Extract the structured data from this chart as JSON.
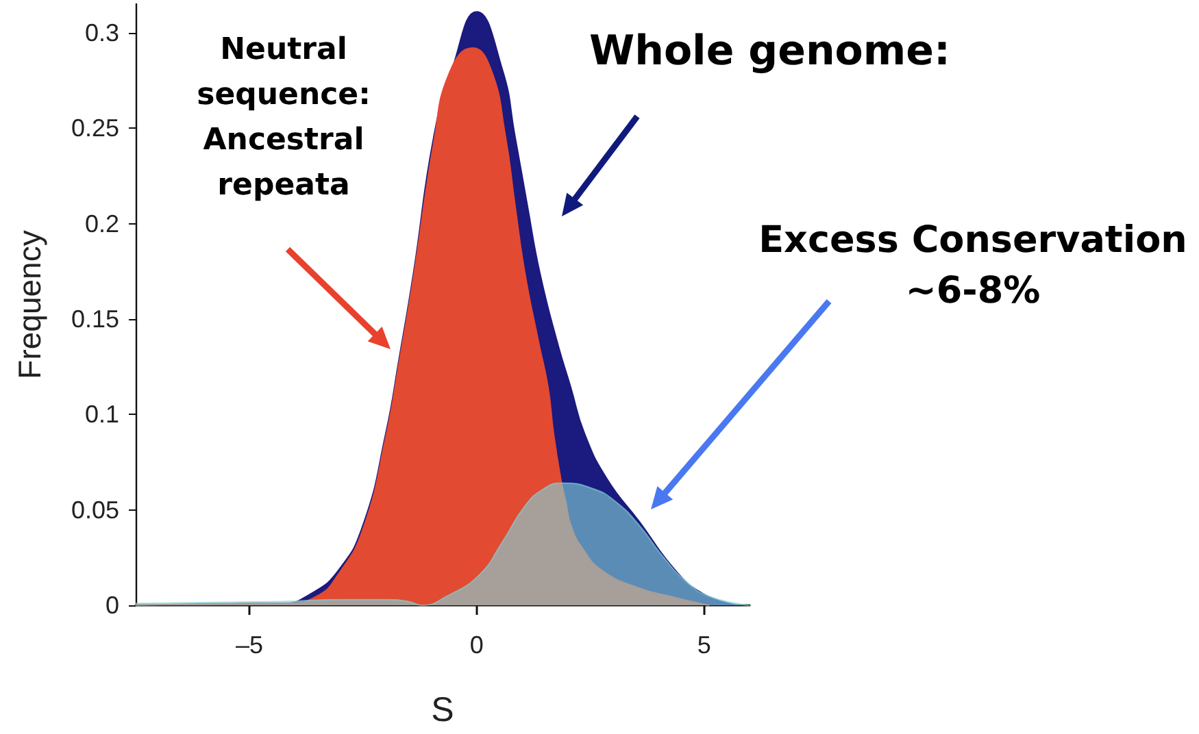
{
  "chart_data": {
    "type": "area",
    "xlabel": "S",
    "ylabel": "Frequency",
    "xlim": [
      -7.5,
      6
    ],
    "xticks": [
      {
        "value": -5,
        "label": "–5"
      },
      0,
      5
    ],
    "ylim": [
      0,
      0.315
    ],
    "yticks": [
      0,
      0.05,
      0.1,
      0.15,
      0.2,
      0.25,
      0.3
    ],
    "series": [
      {
        "color": "#1b1a7e",
        "x": [
          -7.5,
          -6,
          -5,
          -4.26,
          -3.65,
          -3.05,
          -2.5,
          -2.0,
          -1.7,
          -1.39,
          -0.94,
          -0.54,
          0,
          0.56,
          0.84,
          1.11,
          1.39,
          1.77,
          2.07,
          2.37,
          2.87,
          3.57,
          4.38,
          4.98,
          5.72
        ],
        "values": [
          0,
          0,
          0.001,
          0.001,
          0.006,
          0.018,
          0.042,
          0.09,
          0.13,
          0.174,
          0.246,
          0.281,
          0.311,
          0.281,
          0.246,
          0.21,
          0.174,
          0.138,
          0.114,
          0.09,
          0.066,
          0.044,
          0.018,
          0.006,
          0
        ]
      },
      {
        "color": "#e24a32",
        "x": [
          -7.5,
          -5,
          -4.2,
          -3.5,
          -3.05,
          -2.5,
          -2.0,
          -1.7,
          -1.39,
          -0.94,
          -0.6,
          -0.09,
          0.31,
          0.63,
          0.84,
          1.06,
          1.36,
          1.57,
          1.69,
          1.85,
          1.96,
          2.07,
          2.32,
          2.77,
          3.57,
          4.37,
          5.1
        ],
        "values": [
          0,
          0.001,
          0.001,
          0.005,
          0.016,
          0.04,
          0.088,
          0.128,
          0.172,
          0.243,
          0.279,
          0.292,
          0.281,
          0.246,
          0.21,
          0.174,
          0.138,
          0.114,
          0.09,
          0.066,
          0.054,
          0.042,
          0.03,
          0.018,
          0.009,
          0.004,
          0
        ]
      },
      {
        "color": "#83d3d8",
        "x": [
          -7.5,
          -4.3,
          -3,
          -2,
          -1.5,
          -1.2,
          -0.64,
          0.06,
          0.56,
          1.06,
          1.47,
          1.87,
          2.57,
          3.07,
          3.57,
          4.08,
          4.58,
          5.08,
          5.99
        ],
        "values": [
          0.001,
          0.002,
          0.003,
          0.003,
          0.002,
          0,
          0.005,
          0.016,
          0.033,
          0.052,
          0.061,
          0.064,
          0.061,
          0.054,
          0.042,
          0.026,
          0.013,
          0.005,
          0
        ]
      }
    ],
    "annotations": [
      "Neutral sequence: Ancestral repeata",
      "Whole genome:",
      "Excess Conservation ~6-8%"
    ]
  }
}
